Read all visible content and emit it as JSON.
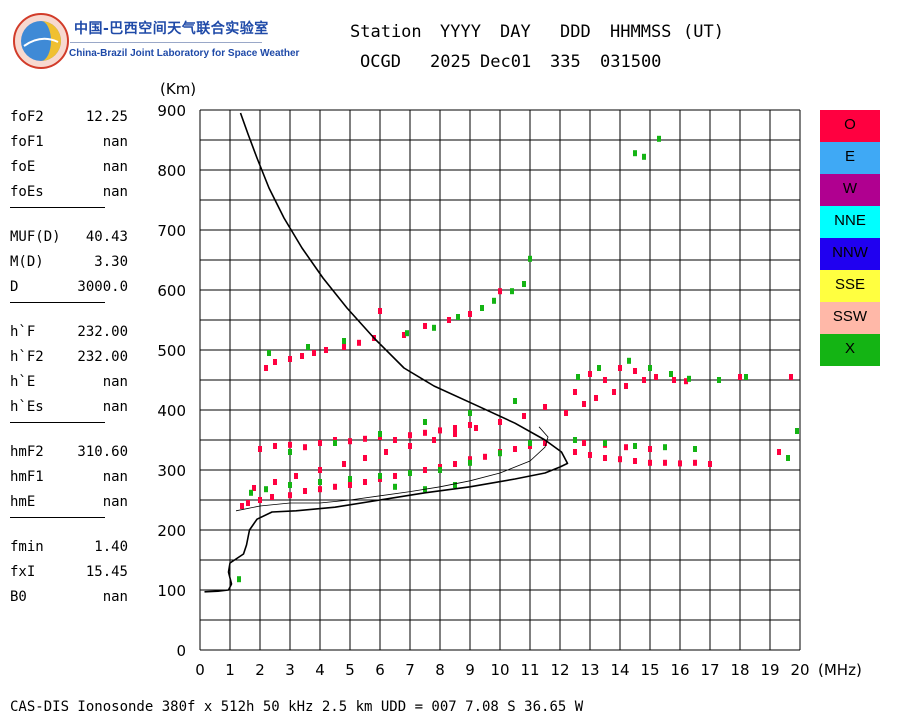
{
  "logo": {
    "text_cn": "中国-巴西空间天气联合实验室",
    "text_en": "China-Brazil Joint Laboratory for Space Weather"
  },
  "header": {
    "labels": [
      "Station",
      "YYYY",
      "DAY",
      "DDD",
      "HHMMSS",
      "(UT)"
    ],
    "values": [
      "OCGD",
      "2025",
      "Dec01",
      "335",
      "031500"
    ]
  },
  "params": [
    {
      "name": "foF2",
      "value": "12.25"
    },
    {
      "name": "foF1",
      "value": "nan"
    },
    {
      "name": "foE",
      "value": "nan"
    },
    {
      "name": "foEs",
      "value": "nan"
    },
    {
      "sep": true
    },
    {
      "name": "MUF(D)",
      "value": "40.43"
    },
    {
      "name": "M(D)",
      "value": "3.30"
    },
    {
      "name": "D",
      "value": "3000.0"
    },
    {
      "sep": true
    },
    {
      "name": "h`F",
      "value": "232.00"
    },
    {
      "name": "h`F2",
      "value": "232.00"
    },
    {
      "name": "h`E",
      "value": "nan"
    },
    {
      "name": "h`Es",
      "value": "nan"
    },
    {
      "sep": true
    },
    {
      "name": "hmF2",
      "value": "310.60"
    },
    {
      "name": "hmF1",
      "value": "nan"
    },
    {
      "name": "hmE",
      "value": "nan"
    },
    {
      "sep": true
    },
    {
      "name": "fmin",
      "value": "1.40"
    },
    {
      "name": "fxI",
      "value": "15.45"
    },
    {
      "name": "B0",
      "value": "nan"
    }
  ],
  "legend": [
    {
      "label": "O",
      "color": "#ff0040"
    },
    {
      "label": "E",
      "color": "#3fa9f5"
    },
    {
      "label": "W",
      "color": "#b00090"
    },
    {
      "label": "NNE",
      "color": "#00ffff"
    },
    {
      "label": "NNW",
      "color": "#2000f0"
    },
    {
      "label": "SSE",
      "color": "#ffff40"
    },
    {
      "label": "SSW",
      "color": "#ffb8a8"
    },
    {
      "label": "X",
      "color": "#14b414"
    }
  ],
  "footer": "CAS-DIS Ionosonde 380f x 512h 50 kHz 2.5 km UDD = 007 7.08 S 36.65 W",
  "chart_data": {
    "type": "scatter",
    "xlabel": "(MHz)",
    "ylabel": "(Km)",
    "xlim": [
      0,
      20
    ],
    "ylim": [
      0,
      900
    ],
    "xticks": [
      0,
      1,
      2,
      3,
      4,
      5,
      6,
      7,
      8,
      9,
      10,
      11,
      12,
      13,
      14,
      15,
      16,
      17,
      18,
      19,
      20
    ],
    "yticks": [
      0,
      100,
      200,
      300,
      400,
      500,
      600,
      700,
      800,
      900
    ],
    "grid": true,
    "grid_x_step": 1,
    "grid_y_step": 50,
    "legend_position": "right",
    "profile_curve": [
      [
        0.15,
        97
      ],
      [
        0.6,
        98
      ],
      [
        0.95,
        100
      ],
      [
        1.05,
        110
      ],
      [
        0.95,
        130
      ],
      [
        1.0,
        145
      ],
      [
        1.45,
        160
      ],
      [
        1.55,
        175
      ],
      [
        1.65,
        200
      ],
      [
        1.9,
        218
      ],
      [
        2.4,
        230
      ],
      [
        3.2,
        232
      ],
      [
        4.5,
        238
      ],
      [
        6.0,
        250
      ],
      [
        7.5,
        262
      ],
      [
        9.0,
        272
      ],
      [
        10.5,
        285
      ],
      [
        11.5,
        295
      ],
      [
        12.0,
        305
      ],
      [
        12.25,
        311
      ],
      [
        12.05,
        330
      ],
      [
        11.5,
        350
      ],
      [
        10.5,
        378
      ],
      [
        9.2,
        408
      ],
      [
        7.8,
        440
      ],
      [
        6.8,
        470
      ],
      [
        5.8,
        520
      ],
      [
        4.9,
        570
      ],
      [
        4.1,
        620
      ],
      [
        3.4,
        670
      ],
      [
        2.8,
        720
      ],
      [
        2.3,
        770
      ],
      [
        1.9,
        820
      ],
      [
        1.6,
        860
      ],
      [
        1.35,
        895
      ]
    ],
    "inner_trace": [
      [
        1.2,
        232
      ],
      [
        2.0,
        240
      ],
      [
        3.0,
        245
      ],
      [
        4.0,
        245
      ],
      [
        5.0,
        250
      ],
      [
        6.0,
        257
      ],
      [
        7.0,
        264
      ],
      [
        8.0,
        272
      ],
      [
        9.0,
        282
      ],
      [
        10.0,
        295
      ],
      [
        11.0,
        315
      ],
      [
        11.5,
        338
      ],
      [
        11.6,
        355
      ],
      [
        11.3,
        372
      ]
    ],
    "series": [
      {
        "name": "O",
        "color": "#ff0040",
        "points": [
          [
            1.4,
            240
          ],
          [
            1.6,
            245
          ],
          [
            2.0,
            250
          ],
          [
            2.4,
            255
          ],
          [
            3.0,
            258
          ],
          [
            3.5,
            265
          ],
          [
            4.0,
            268
          ],
          [
            4.5,
            272
          ],
          [
            5.0,
            275
          ],
          [
            5.5,
            280
          ],
          [
            6.0,
            285
          ],
          [
            6.5,
            290
          ],
          [
            7.0,
            295
          ],
          [
            7.5,
            300
          ],
          [
            8.0,
            305
          ],
          [
            8.5,
            310
          ],
          [
            9.0,
            318
          ],
          [
            9.5,
            322
          ],
          [
            10.0,
            330
          ],
          [
            10.5,
            335
          ],
          [
            11.0,
            340
          ],
          [
            11.5,
            345
          ],
          [
            1.8,
            270
          ],
          [
            2.5,
            280
          ],
          [
            3.2,
            290
          ],
          [
            4.0,
            300
          ],
          [
            4.8,
            310
          ],
          [
            5.5,
            320
          ],
          [
            6.2,
            330
          ],
          [
            7.0,
            340
          ],
          [
            7.8,
            350
          ],
          [
            8.5,
            360
          ],
          [
            9.2,
            370
          ],
          [
            10.0,
            380
          ],
          [
            10.8,
            390
          ],
          [
            11.5,
            405
          ],
          [
            2.0,
            335
          ],
          [
            2.5,
            340
          ],
          [
            3.0,
            342
          ],
          [
            3.5,
            338
          ],
          [
            4.0,
            345
          ],
          [
            4.5,
            350
          ],
          [
            5.0,
            348
          ],
          [
            5.5,
            352
          ],
          [
            6.0,
            355
          ],
          [
            6.5,
            350
          ],
          [
            7.0,
            358
          ],
          [
            7.5,
            362
          ],
          [
            8.0,
            366
          ],
          [
            8.5,
            370
          ],
          [
            9.0,
            375
          ],
          [
            12.5,
            330
          ],
          [
            13.0,
            325
          ],
          [
            13.5,
            320
          ],
          [
            14.0,
            318
          ],
          [
            14.5,
            315
          ],
          [
            15.0,
            312
          ],
          [
            15.5,
            312
          ],
          [
            16.0,
            311
          ],
          [
            16.5,
            312
          ],
          [
            17.0,
            310
          ],
          [
            12.8,
            345
          ],
          [
            13.5,
            342
          ],
          [
            14.2,
            338
          ],
          [
            15.0,
            335
          ],
          [
            12.2,
            395
          ],
          [
            12.8,
            410
          ],
          [
            13.2,
            420
          ],
          [
            13.8,
            430
          ],
          [
            14.2,
            440
          ],
          [
            14.8,
            450
          ],
          [
            15.2,
            455
          ],
          [
            15.8,
            450
          ],
          [
            16.2,
            448
          ],
          [
            13.0,
            460
          ],
          [
            13.5,
            450
          ],
          [
            14.0,
            470
          ],
          [
            14.5,
            465
          ],
          [
            12.5,
            430
          ],
          [
            18.0,
            455
          ],
          [
            19.7,
            455
          ],
          [
            19.3,
            330
          ],
          [
            2.2,
            470
          ],
          [
            2.5,
            480
          ],
          [
            3.0,
            485
          ],
          [
            3.4,
            490
          ],
          [
            3.8,
            495
          ],
          [
            4.2,
            500
          ],
          [
            4.8,
            505
          ],
          [
            5.3,
            512
          ],
          [
            5.8,
            520
          ],
          [
            6.0,
            565
          ],
          [
            6.8,
            525
          ],
          [
            7.5,
            540
          ],
          [
            8.3,
            550
          ],
          [
            9.0,
            560
          ],
          [
            10.0,
            598
          ]
        ]
      },
      {
        "name": "X",
        "color": "#14b414",
        "points": [
          [
            1.7,
            262
          ],
          [
            2.2,
            268
          ],
          [
            3.0,
            275
          ],
          [
            4.0,
            280
          ],
          [
            5.0,
            285
          ],
          [
            6.0,
            290
          ],
          [
            7.0,
            295
          ],
          [
            8.0,
            300
          ],
          [
            9.0,
            312
          ],
          [
            10.0,
            328
          ],
          [
            11.0,
            345
          ],
          [
            6.5,
            272
          ],
          [
            7.5,
            268
          ],
          [
            8.5,
            275
          ],
          [
            3.0,
            330
          ],
          [
            4.5,
            345
          ],
          [
            6.0,
            360
          ],
          [
            7.5,
            380
          ],
          [
            9.0,
            395
          ],
          [
            10.5,
            415
          ],
          [
            12.5,
            350
          ],
          [
            13.5,
            345
          ],
          [
            14.5,
            340
          ],
          [
            15.5,
            338
          ],
          [
            16.5,
            335
          ],
          [
            19.6,
            320
          ],
          [
            19.9,
            365
          ],
          [
            12.6,
            455
          ],
          [
            13.3,
            470
          ],
          [
            14.3,
            482
          ],
          [
            15.0,
            470
          ],
          [
            15.7,
            460
          ],
          [
            16.3,
            452
          ],
          [
            17.3,
            450
          ],
          [
            18.2,
            455
          ],
          [
            2.3,
            495
          ],
          [
            3.6,
            505
          ],
          [
            4.8,
            515
          ],
          [
            6.9,
            528
          ],
          [
            7.8,
            537
          ],
          [
            8.6,
            555
          ],
          [
            9.4,
            570
          ],
          [
            9.8,
            582
          ],
          [
            10.4,
            598
          ],
          [
            10.8,
            610
          ],
          [
            11.0,
            652
          ],
          [
            14.5,
            828
          ],
          [
            14.8,
            822
          ],
          [
            15.3,
            852
          ],
          [
            1.3,
            118
          ]
        ]
      }
    ]
  }
}
